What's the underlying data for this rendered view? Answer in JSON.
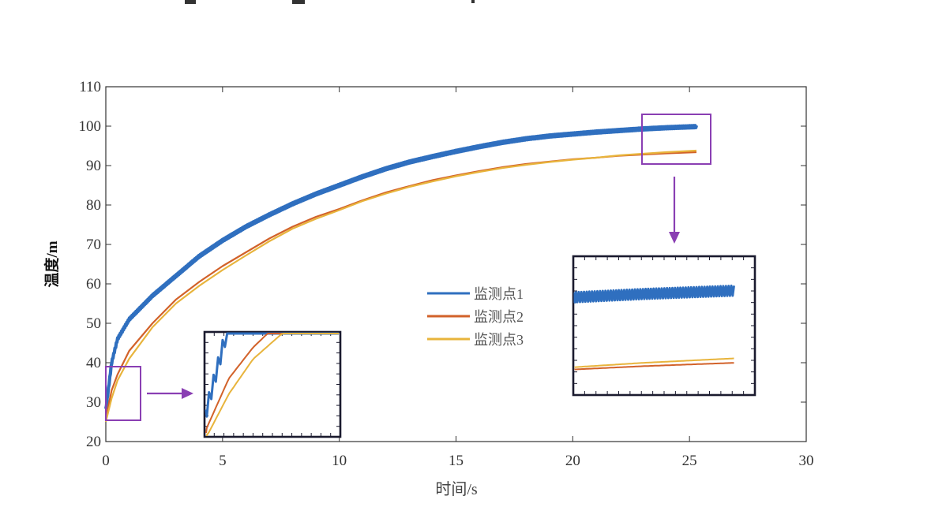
{
  "chart_data": {
    "type": "line",
    "xlabel": "时间/s",
    "ylabel": "温度/m",
    "xlim": [
      0,
      30
    ],
    "ylim": [
      20,
      110
    ],
    "xticks": [
      "0",
      "5",
      "10",
      "15",
      "20",
      "25",
      "30"
    ],
    "yticks": [
      "20",
      "30",
      "40",
      "50",
      "60",
      "70",
      "80",
      "90",
      "100",
      "110"
    ],
    "grid": false,
    "legend_position": "center-right",
    "series": [
      {
        "name": "监测点1",
        "color": "#2F6FBF",
        "noisy": true,
        "x": [
          0,
          0.25,
          0.5,
          1,
          2,
          3,
          4,
          5,
          6,
          7,
          8,
          9,
          10,
          11,
          12,
          13,
          14,
          15,
          16,
          17,
          18,
          19,
          20,
          21,
          22,
          23,
          24,
          25.3
        ],
        "y": [
          28,
          40,
          46,
          51,
          57,
          62,
          67,
          71,
          74.5,
          77.5,
          80.3,
          82.8,
          85,
          87.2,
          89.2,
          90.9,
          92.3,
          93.6,
          94.8,
          95.9,
          96.8,
          97.5,
          98,
          98.5,
          98.9,
          99.3,
          99.6,
          99.9
        ]
      },
      {
        "name": "监测点2",
        "color": "#D2622A",
        "noisy": false,
        "x": [
          0,
          0.25,
          0.5,
          1,
          2,
          3,
          4,
          5,
          6,
          7,
          8,
          9,
          10,
          11,
          12,
          13,
          14,
          15,
          16,
          17,
          18,
          19,
          20,
          21,
          22,
          23,
          24,
          25.3
        ],
        "y": [
          26,
          33,
          37,
          43,
          50,
          56,
          60.5,
          64.5,
          68,
          71.5,
          74.5,
          77,
          79,
          81.2,
          83.2,
          84.8,
          86.3,
          87.5,
          88.6,
          89.6,
          90.4,
          91,
          91.6,
          92,
          92.5,
          92.8,
          93.1,
          93.4
        ]
      },
      {
        "name": "监测点3",
        "color": "#E8B43C",
        "noisy": false,
        "x": [
          0,
          0.25,
          0.5,
          1,
          2,
          3,
          4,
          5,
          6,
          7,
          8,
          9,
          10,
          11,
          12,
          13,
          14,
          15,
          16,
          17,
          18,
          19,
          20,
          21,
          22,
          23,
          24,
          25.3
        ],
        "y": [
          25,
          31,
          35.5,
          41,
          49,
          55,
          59.5,
          63.5,
          67.2,
          70.8,
          74,
          76.5,
          78.7,
          81,
          82.9,
          84.6,
          86,
          87.3,
          88.4,
          89.4,
          90.2,
          90.9,
          91.5,
          92,
          92.6,
          93,
          93.4,
          93.8
        ]
      }
    ],
    "insets": [
      {
        "region_x": [
          0,
          1.4
        ],
        "region_y": [
          25.5,
          39
        ],
        "location": "lower-center"
      },
      {
        "region_x": [
          23,
          25.6
        ],
        "region_y": [
          90.5,
          103
        ],
        "location": "right"
      }
    ]
  }
}
